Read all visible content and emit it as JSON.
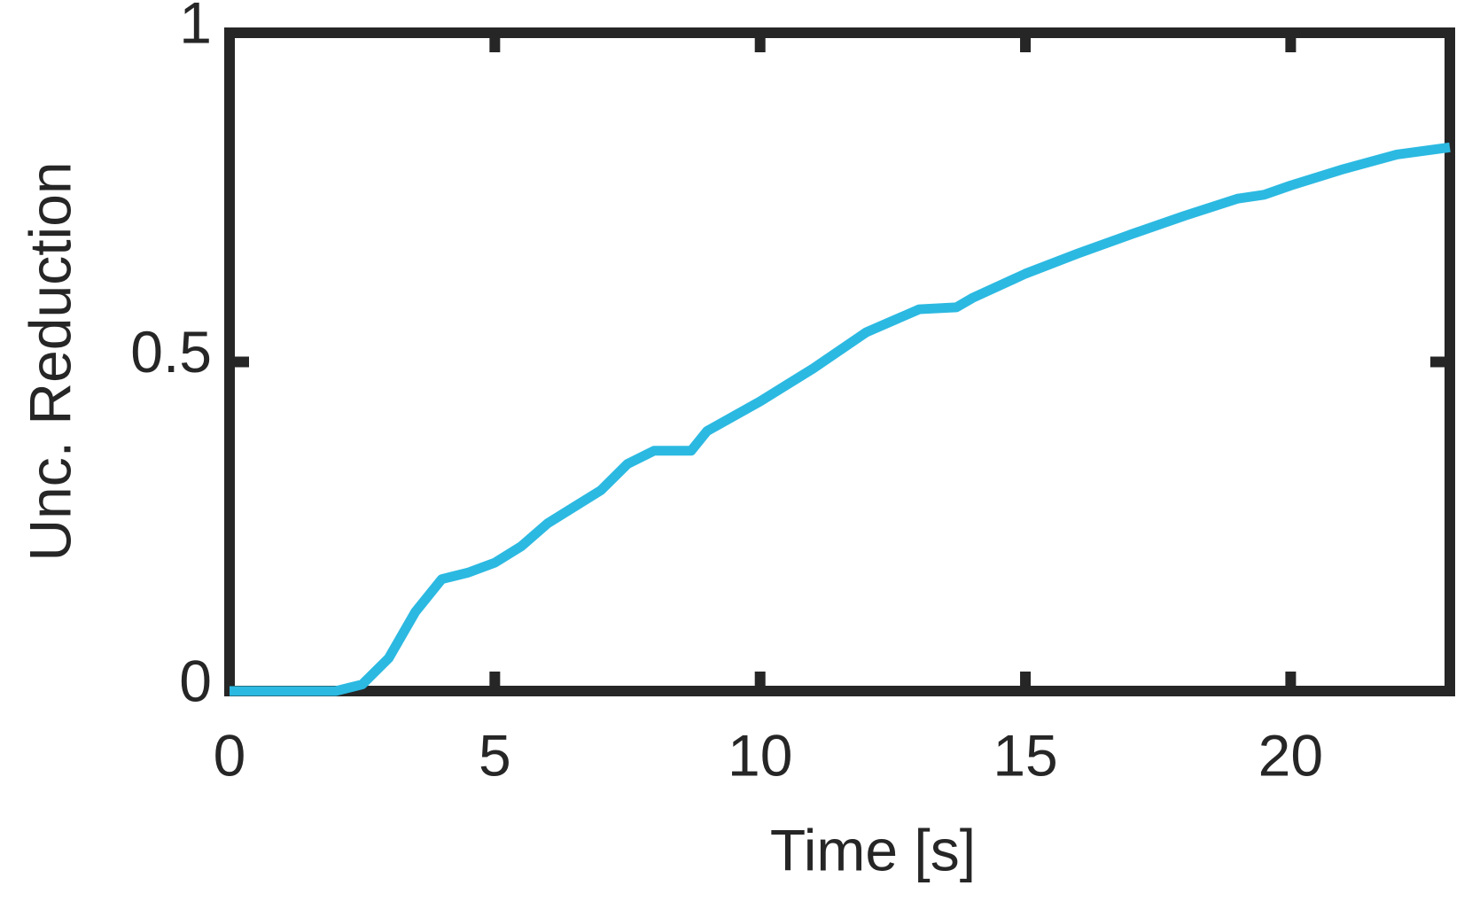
{
  "chart_data": {
    "type": "line",
    "xlabel": "Time [s]",
    "ylabel": "Unc. Reduction",
    "x": [
      0,
      1,
      2,
      2.5,
      3,
      3.5,
      4,
      4.5,
      5,
      5.5,
      6,
      6.5,
      7,
      7.5,
      8,
      8.7,
      9,
      10,
      11,
      12,
      13,
      13.7,
      14,
      15,
      16,
      17,
      18,
      19,
      19.5,
      20,
      21,
      22,
      23
    ],
    "series": [
      {
        "color": "#2bb9e1",
        "values": [
          0,
          0,
          0,
          0.01,
          0.05,
          0.12,
          0.17,
          0.18,
          0.195,
          0.22,
          0.255,
          0.28,
          0.305,
          0.345,
          0.365,
          0.365,
          0.395,
          0.44,
          0.49,
          0.545,
          0.58,
          0.583,
          0.597,
          0.634,
          0.665,
          0.694,
          0.722,
          0.748,
          0.754,
          0.768,
          0.793,
          0.815,
          0.826
        ]
      }
    ],
    "xlim": [
      0,
      23
    ],
    "xticks": [
      0,
      5,
      10,
      15,
      20
    ],
    "ylim": [
      0,
      1
    ],
    "yticks": [
      0,
      {
        "value": 0.5,
        "label": "0.5"
      },
      1
    ]
  }
}
